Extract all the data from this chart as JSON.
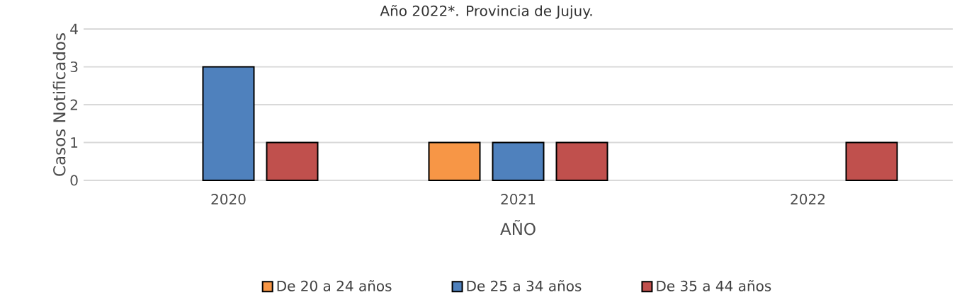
{
  "chart_data": {
    "type": "bar",
    "title": "Año 2022*. Provincia de Jujuy.",
    "xlabel": "AÑO",
    "ylabel": "Casos Notificados",
    "categories": [
      "2020",
      "2021",
      "2022"
    ],
    "series": [
      {
        "name": "De 20 a 24 años",
        "color": "#f79646",
        "values": [
          null,
          1,
          null
        ]
      },
      {
        "name": "De 25 a 34 años",
        "color": "#4f81bd",
        "values": [
          3,
          1,
          null
        ]
      },
      {
        "name": "De 35 a 44 años",
        "color": "#c0504d",
        "values": [
          1,
          1,
          1
        ]
      }
    ],
    "ylim": [
      0,
      4
    ],
    "yticks": [
      0,
      1,
      2,
      3,
      4
    ],
    "grid": "y",
    "legend": "bottom"
  }
}
